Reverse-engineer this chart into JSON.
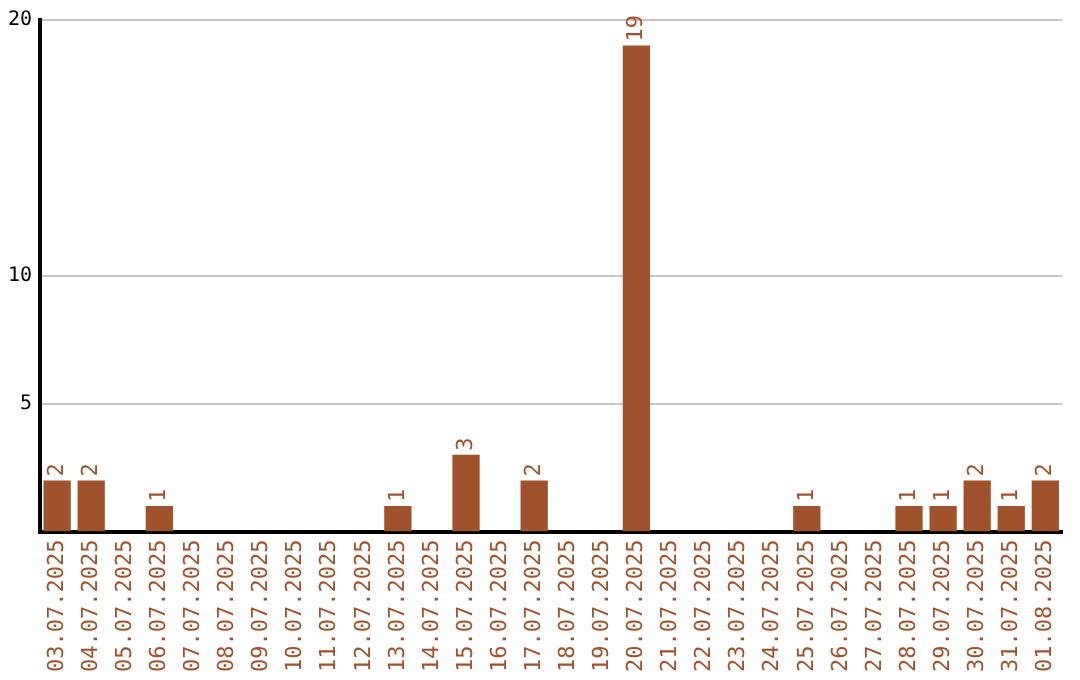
{
  "chart_data": {
    "type": "bar",
    "categories": [
      "03.07.2025",
      "04.07.2025",
      "05.07.2025",
      "06.07.2025",
      "07.07.2025",
      "08.07.2025",
      "09.07.2025",
      "10.07.2025",
      "11.07.2025",
      "12.07.2025",
      "13.07.2025",
      "14.07.2025",
      "15.07.2025",
      "16.07.2025",
      "17.07.2025",
      "18.07.2025",
      "19.07.2025",
      "20.07.2025",
      "21.07.2025",
      "22.07.2025",
      "23.07.2025",
      "24.07.2025",
      "25.07.2025",
      "26.07.2025",
      "27.07.2025",
      "28.07.2025",
      "29.07.2025",
      "30.07.2025",
      "31.07.2025",
      "01.08.2025"
    ],
    "values": [
      2,
      2,
      0,
      1,
      0,
      0,
      0,
      0,
      0,
      0,
      1,
      0,
      3,
      0,
      2,
      0,
      0,
      19,
      0,
      0,
      0,
      0,
      1,
      0,
      0,
      1,
      1,
      2,
      1,
      2
    ],
    "value_labels": [
      "2",
      "2",
      null,
      "1",
      null,
      null,
      null,
      null,
      null,
      null,
      "1",
      null,
      "3",
      null,
      "2",
      null,
      null,
      "19",
      null,
      null,
      null,
      null,
      "1",
      null,
      null,
      "1",
      "1",
      "2",
      "1",
      "2"
    ],
    "color": "#a0522d",
    "ylim": [
      0,
      20
    ],
    "yticks": [
      5,
      10,
      20
    ],
    "grid": "y",
    "legend": false
  }
}
